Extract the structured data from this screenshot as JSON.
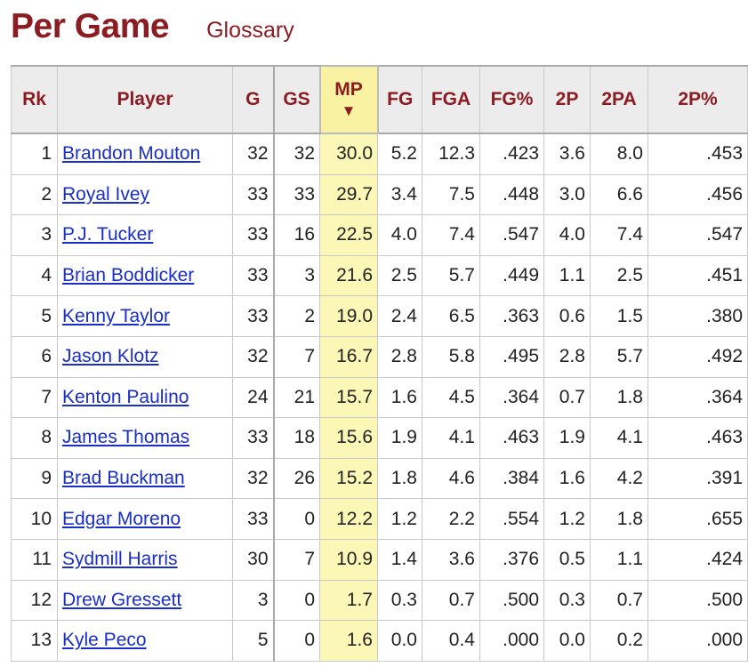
{
  "header": {
    "title": "Per Game",
    "glossary_label": "Glossary"
  },
  "table": {
    "columns": [
      "Rk",
      "Player",
      "G",
      "GS",
      "MP",
      "FG",
      "FGA",
      "FG%",
      "2P",
      "2PA",
      "2P%"
    ],
    "sorted_column": "MP",
    "sort_indicator": "▼",
    "rows": [
      [
        "1",
        "Brandon Mouton",
        "32",
        "32",
        "30.0",
        "5.2",
        "12.3",
        ".423",
        "3.6",
        "8.0",
        ".453"
      ],
      [
        "2",
        "Royal Ivey",
        "33",
        "33",
        "29.7",
        "3.4",
        "7.5",
        ".448",
        "3.0",
        "6.6",
        ".456"
      ],
      [
        "3",
        "P.J. Tucker",
        "33",
        "16",
        "22.5",
        "4.0",
        "7.4",
        ".547",
        "4.0",
        "7.4",
        ".547"
      ],
      [
        "4",
        "Brian Boddicker",
        "33",
        "3",
        "21.6",
        "2.5",
        "5.7",
        ".449",
        "1.1",
        "2.5",
        ".451"
      ],
      [
        "5",
        "Kenny Taylor",
        "33",
        "2",
        "19.0",
        "2.4",
        "6.5",
        ".363",
        "0.6",
        "1.5",
        ".380"
      ],
      [
        "6",
        "Jason Klotz",
        "32",
        "7",
        "16.7",
        "2.8",
        "5.8",
        ".495",
        "2.8",
        "5.7",
        ".492"
      ],
      [
        "7",
        "Kenton Paulino",
        "24",
        "21",
        "15.7",
        "1.6",
        "4.5",
        ".364",
        "0.7",
        "1.8",
        ".364"
      ],
      [
        "8",
        "James Thomas",
        "33",
        "18",
        "15.6",
        "1.9",
        "4.1",
        ".463",
        "1.9",
        "4.1",
        ".463"
      ],
      [
        "9",
        "Brad Buckman",
        "32",
        "26",
        "15.2",
        "1.8",
        "4.6",
        ".384",
        "1.6",
        "4.2",
        ".391"
      ],
      [
        "10",
        "Edgar Moreno",
        "33",
        "0",
        "12.2",
        "1.2",
        "2.2",
        ".554",
        "1.2",
        "1.8",
        ".655"
      ],
      [
        "11",
        "Sydmill Harris",
        "30",
        "7",
        "10.9",
        "1.4",
        "3.6",
        ".376",
        "0.5",
        "1.1",
        ".424"
      ],
      [
        "12",
        "Drew Gressett",
        "3",
        "0",
        "1.7",
        "0.3",
        "0.7",
        ".500",
        "0.3",
        "0.7",
        ".500"
      ],
      [
        "13",
        "Kyle Peco",
        "5",
        "0",
        "1.6",
        "0.0",
        "0.4",
        ".000",
        "0.0",
        "0.2",
        ".000"
      ]
    ]
  },
  "colors": {
    "title": "#8b1c22",
    "link": "#1a2ec8",
    "sorted_column": "#fbf7b7",
    "header_bg": "#ececec"
  }
}
